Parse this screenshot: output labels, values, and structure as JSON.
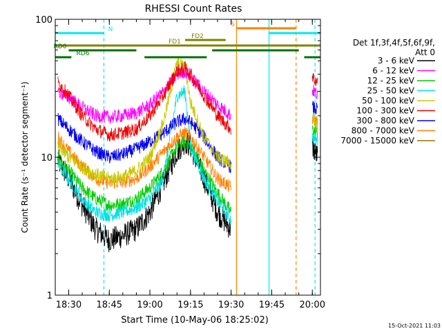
{
  "chart_data": {
    "type": "line",
    "title": "RHESSI Count Rates",
    "xlabel": "Start Time (10-May-06 18:25:02)",
    "ylabel": "Count Rate (s⁻¹ detector segment⁻¹)",
    "footer_date": "15-Oct-2021 11:03",
    "x_scale": "time",
    "y_scale": "log",
    "xlim": [
      "18:25:02",
      "20:03:00"
    ],
    "ylim": [
      1,
      100
    ],
    "x_ticks": [
      "18:30",
      "18:45",
      "19:00",
      "19:15",
      "19:30",
      "19:45",
      "20:00"
    ],
    "y_ticks": [
      "1",
      "10",
      "100"
    ],
    "legend": {
      "placement": "right",
      "header": [
        "Det 1f,3f,4f,5f,6f,9f,",
        "Att 0"
      ],
      "entries": [
        {
          "label": "3 - 6 keV",
          "color": "#000000"
        },
        {
          "label": "6 - 12 keV",
          "color": "#ff00ff"
        },
        {
          "label": "12 - 25 keV",
          "color": "#00cc00"
        },
        {
          "label": "25 - 50 keV",
          "color": "#00e0e0"
        },
        {
          "label": "50 - 100 keV",
          "color": "#c8c800"
        },
        {
          "label": "100 - 300 keV",
          "color": "#ee0000"
        },
        {
          "label": "300 - 800 keV",
          "color": "#0000ee"
        },
        {
          "label": "800 - 7000 keV",
          "color": "#ff8000"
        },
        {
          "label": "7000 - 15000 keV",
          "color": "#8b7500"
        }
      ]
    },
    "flag_bars": [
      {
        "label": "N",
        "color": "#00e8f0",
        "segments": [
          [
            "18:25:02",
            "18:43:00"
          ],
          [
            "19:44:00",
            "20:03:00"
          ]
        ]
      },
      {
        "label": "S",
        "color": "#ff8000",
        "segments": [
          [
            "19:32:00",
            "19:54:00"
          ]
        ]
      },
      {
        "label": "FD1",
        "color": "#808000",
        "segments": [
          [
            "18:25:02",
            "20:03:00"
          ]
        ]
      },
      {
        "label": "FD2",
        "color": "#808000",
        "segments": [
          [
            "19:13:00",
            "19:28:00"
          ]
        ]
      },
      {
        "label": "RD0",
        "color": "#007000",
        "segments": [
          [
            "18:30:00",
            "18:55:00"
          ],
          [
            "19:23:00",
            "19:55:00"
          ]
        ]
      },
      {
        "label": "RD6",
        "color": "#007000",
        "segments": [
          [
            "18:25:02",
            "18:31:00"
          ],
          [
            "18:58:00",
            "19:21:00"
          ],
          [
            "19:57:00",
            "20:03:00"
          ]
        ]
      }
    ],
    "vlines": [
      {
        "x": "18:25:02",
        "color": "#00e8f0",
        "style": "solid"
      },
      {
        "x": "18:43:00",
        "color": "#00e8f0",
        "style": "dashed"
      },
      {
        "x": "19:32:00",
        "color": "#ff8000",
        "style": "solid"
      },
      {
        "x": "19:44:00",
        "color": "#00e8f0",
        "style": "solid"
      },
      {
        "x": "19:54:00",
        "color": "#ff8000",
        "style": "dashed"
      },
      {
        "x": "20:01:00",
        "color": "#00e8f0",
        "style": "dashed"
      }
    ],
    "series": [
      {
        "name": "3 - 6 keV",
        "color": "#000000",
        "x": [
          "18:26",
          "18:30",
          "18:35",
          "18:40",
          "18:45",
          "18:50",
          "18:55",
          "19:00",
          "19:05",
          "19:10",
          "19:13",
          "19:15",
          "19:20",
          "19:25",
          "19:30",
          "20:00",
          "20:02"
        ],
        "values": [
          9.5,
          7,
          4.5,
          3,
          2.5,
          2.7,
          3,
          4,
          6.5,
          11,
          13,
          12,
          7,
          4,
          3,
          12,
          10
        ]
      },
      {
        "name": "6 - 12 keV",
        "color": "#ff00ff",
        "x": [
          "18:26",
          "18:30",
          "18:35",
          "18:40",
          "18:45",
          "18:50",
          "18:55",
          "19:00",
          "19:05",
          "19:10",
          "19:13",
          "19:15",
          "19:20",
          "19:25",
          "19:30",
          "20:00",
          "20:02"
        ],
        "values": [
          30,
          27,
          23,
          20,
          19.5,
          20,
          21,
          24,
          30,
          40,
          42,
          38,
          30,
          24,
          20,
          31,
          28
        ]
      },
      {
        "name": "12 - 25 keV",
        "color": "#00cc00",
        "x": [
          "18:26",
          "18:30",
          "18:35",
          "18:40",
          "18:45",
          "18:50",
          "18:55",
          "19:00",
          "19:05",
          "19:10",
          "19:13",
          "19:15",
          "19:20",
          "19:25",
          "19:30",
          "20:00",
          "20:02"
        ],
        "values": [
          10,
          8,
          6,
          5,
          4.5,
          4.6,
          5,
          6,
          8,
          12,
          13,
          12,
          8,
          5.5,
          4,
          16,
          15
        ]
      },
      {
        "name": "25 - 50 keV",
        "color": "#00e0e0",
        "x": [
          "18:26",
          "18:30",
          "18:35",
          "18:40",
          "18:45",
          "18:50",
          "18:55",
          "19:00",
          "19:05",
          "19:10",
          "19:13",
          "19:15",
          "19:20",
          "19:25",
          "19:30",
          "20:00",
          "20:02"
        ],
        "values": [
          9,
          7,
          5,
          4,
          3.8,
          4,
          4.3,
          5,
          7,
          28,
          30,
          12,
          7,
          4.8,
          3.5,
          14,
          13
        ]
      },
      {
        "name": "50 - 100 keV",
        "color": "#c8c800",
        "x": [
          "18:26",
          "18:30",
          "18:35",
          "18:40",
          "18:45",
          "18:50",
          "18:55",
          "19:00",
          "19:05",
          "19:10",
          "19:13",
          "19:15",
          "19:20",
          "19:25",
          "19:30",
          "20:00",
          "20:02"
        ],
        "values": [
          12,
          10,
          8.5,
          7.5,
          7,
          7.2,
          8,
          10,
          18,
          48,
          45,
          25,
          14,
          10,
          9,
          18,
          17
        ]
      },
      {
        "name": "100 - 300 keV",
        "color": "#ee0000",
        "x": [
          "18:26",
          "18:30",
          "18:35",
          "18:40",
          "18:45",
          "18:50",
          "18:55",
          "19:00",
          "19:05",
          "19:10",
          "19:13",
          "19:15",
          "19:20",
          "19:25",
          "19:30",
          "20:00",
          "20:02"
        ],
        "values": [
          35,
          28,
          20,
          16,
          14.5,
          15,
          16,
          20,
          28,
          42,
          44,
          40,
          28,
          20,
          16,
          38,
          35
        ]
      },
      {
        "name": "300 - 800 keV",
        "color": "#0000ee",
        "x": [
          "18:26",
          "18:30",
          "18:35",
          "18:40",
          "18:45",
          "18:50",
          "18:55",
          "19:00",
          "19:05",
          "19:10",
          "19:13",
          "19:15",
          "19:20",
          "19:25",
          "19:30",
          "20:00",
          "20:02"
        ],
        "values": [
          19,
          16,
          13,
          11,
          10,
          10.5,
          11.5,
          13,
          15,
          18,
          19,
          18,
          14,
          10,
          8.5,
          23,
          22
        ]
      },
      {
        "name": "800 - 7000 keV",
        "color": "#ff8000",
        "x": [
          "18:26",
          "18:30",
          "18:35",
          "18:40",
          "18:45",
          "18:50",
          "18:55",
          "19:00",
          "19:05",
          "19:10",
          "19:13",
          "19:15",
          "19:20",
          "19:25",
          "19:30",
          "20:00",
          "20:02"
        ],
        "values": [
          14,
          11,
          8.5,
          7,
          6.5,
          6.6,
          7,
          8.5,
          11,
          14,
          15,
          14,
          10,
          7,
          6,
          19,
          18
        ]
      },
      {
        "name": "7000 - 15000 keV",
        "color": "#8b7500",
        "x": [],
        "values": []
      }
    ]
  }
}
